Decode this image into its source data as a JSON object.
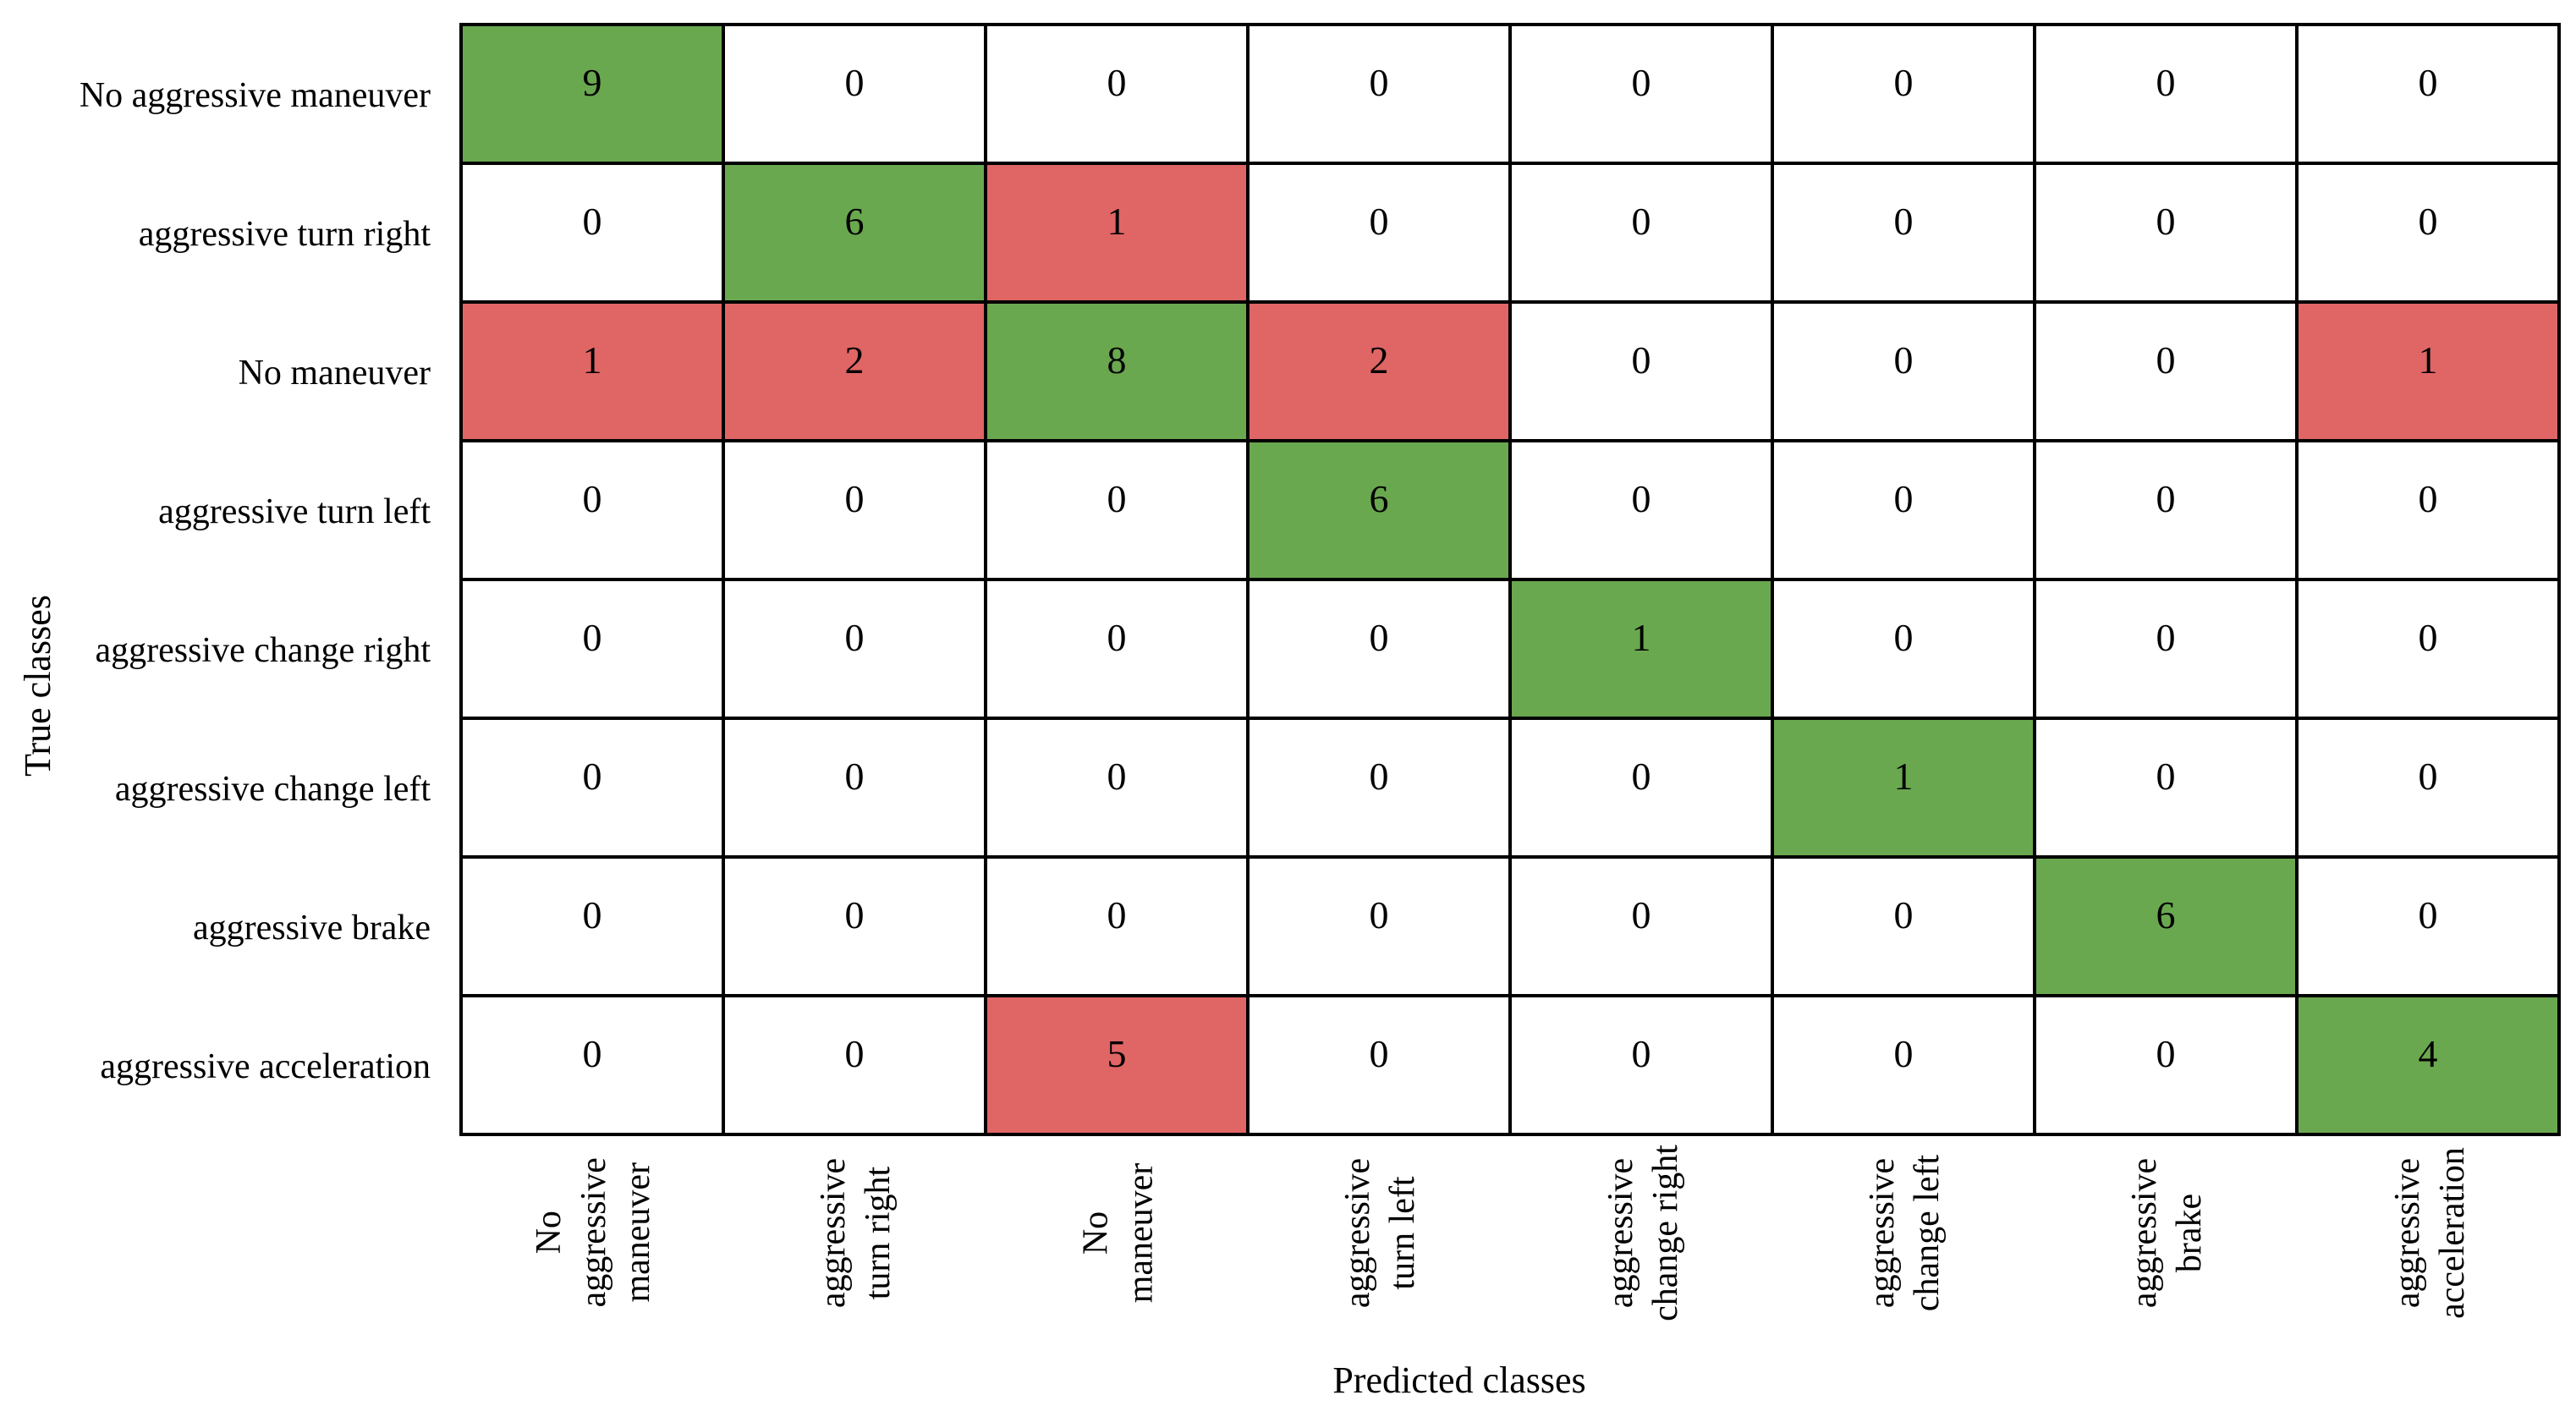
{
  "figure": {
    "background": "#ffffff"
  },
  "chart_data": {
    "type": "heatmap",
    "subtype": "confusion-matrix",
    "title": "",
    "xlabel": "Predicted classes",
    "ylabel": "True classes",
    "categories": [
      "No aggressive maneuver",
      "aggressive turn right",
      "No maneuver",
      "aggressive turn left",
      "aggressive change right",
      "aggressive change left",
      "aggressive brake",
      "aggressive acceleration"
    ],
    "row_labels": [
      "No aggressive maneuver",
      "aggressive turn right",
      "No maneuver",
      "aggressive turn left",
      "aggressive change right",
      "aggressive change left",
      "aggressive brake",
      "aggressive acceleration"
    ],
    "col_labels_wrapped": [
      "No\naggressive\nmaneuver",
      "aggressive\nturn right",
      "No\nmaneuver",
      "aggressive\nturn left",
      "aggressive\nchange right",
      "aggressive\nchange left",
      "aggressive\nbrake",
      "aggressive\nacceleration"
    ],
    "matrix": [
      [
        9,
        0,
        0,
        0,
        0,
        0,
        0,
        0
      ],
      [
        0,
        6,
        1,
        0,
        0,
        0,
        0,
        0
      ],
      [
        1,
        2,
        8,
        2,
        0,
        0,
        0,
        1
      ],
      [
        0,
        0,
        0,
        6,
        0,
        0,
        0,
        0
      ],
      [
        0,
        0,
        0,
        0,
        1,
        0,
        0,
        0
      ],
      [
        0,
        0,
        0,
        0,
        0,
        1,
        0,
        0
      ],
      [
        0,
        0,
        0,
        0,
        0,
        0,
        6,
        0
      ],
      [
        0,
        0,
        5,
        0,
        0,
        0,
        0,
        4
      ]
    ],
    "grid": {
      "rows": 8,
      "cols": 8
    },
    "colors": {
      "diagonal_correct": "#6aa84f",
      "off_diagonal_error": "#e06565",
      "zero_cell": "#ffffff",
      "border": "#000000",
      "text": "#000000"
    },
    "color_rule": "diagonal cells with value > 0 are green, off-diagonal cells with value > 0 are red, zero cells are white"
  }
}
